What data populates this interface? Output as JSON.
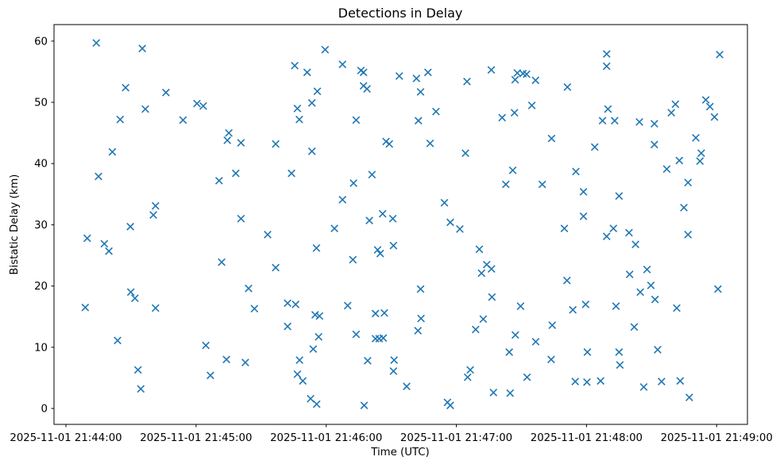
{
  "figure": {
    "background_color": "#ffffff",
    "frame_color": "#000000"
  },
  "chart_data": {
    "type": "scatter",
    "title": "Detections in Delay",
    "xlabel": "Time (UTC)",
    "ylabel": "Bistatic Delay (km)",
    "marker": "x",
    "marker_color": "#1f77b4",
    "grid": false,
    "legend": null,
    "x_unit": "seconds after 2025-11-01 21:44:00 UTC",
    "xlim_seconds": [
      -5.5,
      314.2
    ],
    "ylim": [
      -2.6,
      62.7
    ],
    "x_ticks": [
      {
        "t": 0,
        "label": "2025-11-01 21:44:00"
      },
      {
        "t": 60,
        "label": "2025-11-01 21:45:00"
      },
      {
        "t": 120,
        "label": "2025-11-01 21:46:00"
      },
      {
        "t": 180,
        "label": "2025-11-01 21:47:00"
      },
      {
        "t": 240,
        "label": "2025-11-01 21:48:00"
      },
      {
        "t": 300,
        "label": "2025-11-01 21:49:00"
      }
    ],
    "y_ticks": [
      0,
      10,
      20,
      30,
      40,
      50,
      60
    ],
    "points": [
      [
        14.0,
        59.7
      ],
      [
        35.2,
        58.8
      ],
      [
        27.5,
        52.4
      ],
      [
        46.1,
        51.6
      ],
      [
        60.4,
        49.8
      ],
      [
        63.3,
        49.4
      ],
      [
        36.6,
        48.9
      ],
      [
        25.0,
        47.2
      ],
      [
        54.0,
        47.1
      ],
      [
        21.4,
        41.9
      ],
      [
        119.5,
        58.6
      ],
      [
        105.5,
        56.0
      ],
      [
        127.5,
        56.2
      ],
      [
        111.2,
        54.9
      ],
      [
        136.0,
        55.2
      ],
      [
        137.2,
        54.9
      ],
      [
        137.2,
        52.7
      ],
      [
        138.8,
        52.2
      ],
      [
        115.9,
        51.8
      ],
      [
        113.4,
        49.9
      ],
      [
        106.7,
        49.0
      ],
      [
        107.6,
        47.2
      ],
      [
        133.8,
        47.1
      ],
      [
        75.1,
        45.0
      ],
      [
        74.4,
        43.8
      ],
      [
        80.7,
        43.4
      ],
      [
        96.7,
        43.2
      ],
      [
        113.4,
        42.0
      ],
      [
        147.6,
        43.6
      ],
      [
        149.1,
        43.2
      ],
      [
        166.9,
        54.9
      ],
      [
        161.6,
        53.9
      ],
      [
        196.1,
        55.3
      ],
      [
        208.1,
        54.8
      ],
      [
        210.7,
        54.7
      ],
      [
        212.4,
        54.6
      ],
      [
        207.1,
        53.7
      ],
      [
        216.5,
        53.6
      ],
      [
        231.2,
        52.5
      ],
      [
        163.5,
        51.7
      ],
      [
        184.9,
        53.4
      ],
      [
        214.8,
        49.5
      ],
      [
        170.6,
        48.5
      ],
      [
        206.8,
        48.3
      ],
      [
        201.1,
        47.5
      ],
      [
        162.5,
        47.0
      ],
      [
        167.9,
        43.3
      ],
      [
        184.2,
        41.7
      ],
      [
        223.9,
        44.1
      ],
      [
        153.7,
        54.3
      ],
      [
        249.3,
        57.9
      ],
      [
        249.3,
        55.9
      ],
      [
        301.4,
        57.8
      ],
      [
        249.9,
        48.9
      ],
      [
        247.4,
        47.0
      ],
      [
        253.0,
        47.0
      ],
      [
        264.4,
        46.8
      ],
      [
        271.3,
        46.5
      ],
      [
        279.1,
        48.3
      ],
      [
        281.0,
        49.7
      ],
      [
        295.0,
        50.4
      ],
      [
        296.9,
        49.3
      ],
      [
        299.0,
        47.6
      ],
      [
        290.4,
        44.2
      ],
      [
        271.3,
        43.1
      ],
      [
        243.8,
        42.7
      ],
      [
        292.9,
        41.7
      ],
      [
        282.8,
        40.5
      ],
      [
        292.3,
        40.4
      ],
      [
        15.0,
        37.9
      ],
      [
        70.6,
        37.2
      ],
      [
        41.3,
        33.1
      ],
      [
        40.3,
        31.6
      ],
      [
        29.7,
        29.7
      ],
      [
        9.8,
        27.8
      ],
      [
        17.7,
        26.9
      ],
      [
        19.8,
        25.7
      ],
      [
        71.8,
        23.9
      ],
      [
        78.3,
        38.4
      ],
      [
        104.0,
        38.4
      ],
      [
        132.6,
        36.8
      ],
      [
        141.1,
        38.2
      ],
      [
        127.5,
        34.1
      ],
      [
        80.7,
        31.0
      ],
      [
        146.0,
        31.8
      ],
      [
        139.9,
        30.7
      ],
      [
        150.7,
        31.0
      ],
      [
        123.8,
        29.4
      ],
      [
        93.0,
        28.4
      ],
      [
        115.5,
        26.2
      ],
      [
        151.0,
        26.6
      ],
      [
        143.7,
        25.9
      ],
      [
        144.9,
        25.3
      ],
      [
        132.3,
        24.3
      ],
      [
        96.7,
        23.0
      ],
      [
        84.2,
        19.6
      ],
      [
        206.0,
        38.9
      ],
      [
        235.1,
        38.7
      ],
      [
        202.8,
        36.6
      ],
      [
        219.6,
        36.6
      ],
      [
        174.5,
        33.6
      ],
      [
        177.2,
        30.4
      ],
      [
        181.6,
        29.3
      ],
      [
        229.8,
        29.4
      ],
      [
        190.6,
        26.0
      ],
      [
        194.0,
        23.5
      ],
      [
        196.2,
        22.8
      ],
      [
        191.6,
        22.1
      ],
      [
        231.0,
        20.9
      ],
      [
        163.5,
        19.5
      ],
      [
        277.0,
        39.1
      ],
      [
        286.8,
        36.9
      ],
      [
        238.6,
        35.4
      ],
      [
        255.0,
        34.7
      ],
      [
        284.9,
        32.8
      ],
      [
        238.6,
        31.4
      ],
      [
        252.4,
        29.4
      ],
      [
        249.3,
        28.1
      ],
      [
        259.6,
        28.7
      ],
      [
        286.8,
        28.4
      ],
      [
        262.6,
        26.8
      ],
      [
        267.9,
        22.7
      ],
      [
        259.9,
        21.9
      ],
      [
        269.7,
        20.1
      ],
      [
        300.6,
        19.5
      ],
      [
        264.8,
        19.0
      ],
      [
        29.9,
        19.0
      ],
      [
        31.8,
        18.0
      ],
      [
        8.9,
        16.5
      ],
      [
        41.3,
        16.4
      ],
      [
        23.8,
        11.1
      ],
      [
        64.5,
        10.3
      ],
      [
        33.2,
        6.3
      ],
      [
        66.6,
        5.4
      ],
      [
        34.5,
        3.2
      ],
      [
        74.0,
        8.0
      ],
      [
        86.9,
        16.3
      ],
      [
        102.2,
        17.2
      ],
      [
        105.9,
        17.0
      ],
      [
        114.9,
        15.3
      ],
      [
        116.9,
        15.1
      ],
      [
        102.2,
        13.4
      ],
      [
        129.9,
        16.8
      ],
      [
        142.7,
        15.5
      ],
      [
        146.8,
        15.6
      ],
      [
        116.5,
        11.7
      ],
      [
        133.8,
        12.1
      ],
      [
        142.7,
        11.4
      ],
      [
        144.4,
        11.4
      ],
      [
        146.3,
        11.5
      ],
      [
        114.0,
        9.7
      ],
      [
        82.7,
        7.5
      ],
      [
        107.7,
        7.9
      ],
      [
        106.7,
        5.6
      ],
      [
        109.2,
        4.5
      ],
      [
        139.1,
        7.8
      ],
      [
        151.3,
        7.9
      ],
      [
        151.0,
        6.1
      ],
      [
        112.8,
        1.6
      ],
      [
        115.6,
        0.7
      ],
      [
        137.5,
        0.5
      ],
      [
        196.4,
        18.2
      ],
      [
        209.6,
        16.7
      ],
      [
        233.7,
        16.1
      ],
      [
        163.7,
        14.7
      ],
      [
        162.3,
        12.7
      ],
      [
        192.4,
        14.6
      ],
      [
        188.9,
        12.9
      ],
      [
        207.2,
        12.0
      ],
      [
        216.6,
        10.9
      ],
      [
        224.2,
        13.6
      ],
      [
        204.4,
        9.2
      ],
      [
        223.7,
        8.0
      ],
      [
        186.4,
        6.3
      ],
      [
        185.2,
        5.1
      ],
      [
        212.6,
        5.1
      ],
      [
        157.1,
        3.6
      ],
      [
        197.1,
        2.6
      ],
      [
        204.8,
        2.5
      ],
      [
        175.9,
        1.0
      ],
      [
        177.2,
        0.5
      ],
      [
        239.6,
        17.0
      ],
      [
        253.6,
        16.7
      ],
      [
        271.6,
        17.8
      ],
      [
        281.6,
        16.4
      ],
      [
        262.0,
        13.3
      ],
      [
        240.4,
        9.2
      ],
      [
        255.0,
        9.2
      ],
      [
        272.8,
        9.6
      ],
      [
        255.4,
        7.1
      ],
      [
        234.8,
        4.4
      ],
      [
        240.2,
        4.3
      ],
      [
        246.5,
        4.5
      ],
      [
        266.4,
        3.5
      ],
      [
        274.6,
        4.4
      ],
      [
        283.2,
        4.5
      ],
      [
        287.4,
        1.8
      ]
    ]
  }
}
